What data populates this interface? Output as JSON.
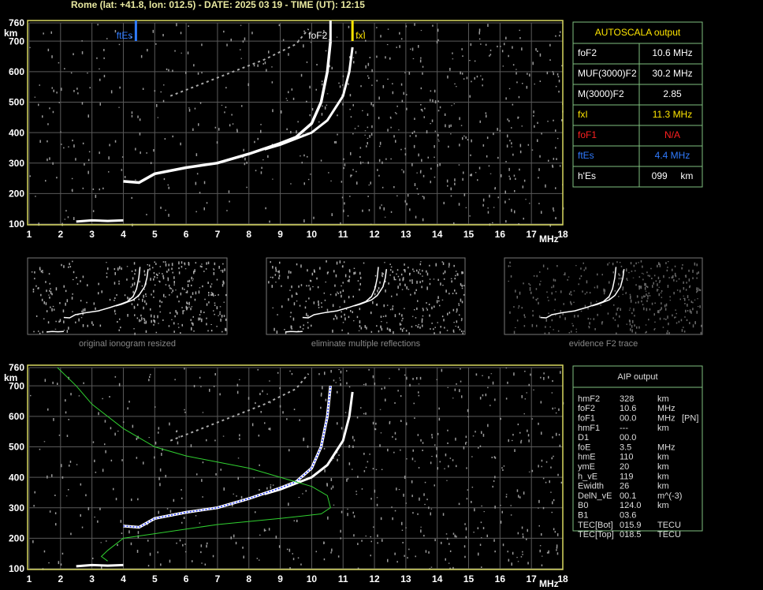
{
  "header": "Rome (lat: +41.8, lon: 012.5) - DATE: 2025 03 19 - TIME (UT): 12:15",
  "ionogram": {
    "x_unit": "MHz",
    "y_unit": "km",
    "xlim": [
      1,
      18
    ],
    "ylim": [
      100,
      760
    ],
    "xticks": [
      1,
      2,
      3,
      4,
      5,
      6,
      7,
      8,
      9,
      10,
      11,
      12,
      13,
      14,
      15,
      16,
      17,
      18
    ],
    "yticks": [
      100,
      200,
      300,
      400,
      500,
      600,
      700,
      760
    ],
    "markers": [
      {
        "label": "ftEs",
        "value": 4.4,
        "color": "#2f7bff"
      },
      {
        "label": "foF2",
        "value": 10.6,
        "color": "#ffffff"
      },
      {
        "label": "fxI",
        "value": 11.3,
        "color": "#ffe600"
      }
    ],
    "trace_o": {
      "f": [
        4.0,
        4.5,
        5.0,
        6.0,
        7.0,
        8.0,
        9.0,
        9.5,
        10.0,
        10.3,
        10.5,
        10.6
      ],
      "h": [
        240,
        236,
        265,
        285,
        300,
        330,
        365,
        385,
        430,
        500,
        600,
        700
      ]
    },
    "trace_x": {
      "f": [
        8.5,
        9.0,
        10.0,
        10.5,
        11.0,
        11.2,
        11.3
      ],
      "h": [
        345,
        360,
        400,
        440,
        520,
        600,
        680
      ]
    },
    "trace_es": {
      "f": [
        2.5,
        3.0,
        3.5,
        4.0
      ],
      "h": [
        108,
        112,
        110,
        112
      ]
    },
    "trace_multi": {
      "f": [
        5.5,
        6.5,
        7.5,
        8.5,
        9.5,
        9.9
      ],
      "h": [
        520,
        560,
        600,
        640,
        690,
        740
      ]
    },
    "profile": {
      "f": [
        1.9,
        2.5,
        3.0,
        4.0,
        5.0,
        6.0,
        7.0,
        8.0,
        9.0,
        10.0,
        10.5,
        10.6,
        10.3,
        9.0,
        7.0,
        5.0,
        4.0,
        3.5,
        3.3,
        3.5
      ],
      "h": [
        760,
        700,
        640,
        560,
        500,
        470,
        450,
        430,
        400,
        370,
        340,
        300,
        280,
        265,
        245,
        215,
        200,
        160,
        140,
        125
      ]
    }
  },
  "autoscala": {
    "title": "AUTOSCALA output",
    "rows": [
      {
        "name": "foF2",
        "value": "10.6 MHz",
        "color": "#ffffff"
      },
      {
        "name": "MUF(3000)F2",
        "value": "30.2 MHz",
        "color": "#ffffff"
      },
      {
        "name": "M(3000)F2",
        "value": "2.85",
        "color": "#ffffff"
      },
      {
        "name": "fxI",
        "value": "11.3 MHz",
        "color": "#ffe600"
      },
      {
        "name": "foF1",
        "value": "N/A",
        "color": "#ff2020"
      },
      {
        "name": "ftEs",
        "value": "4.4 MHz",
        "color": "#2f7bff"
      },
      {
        "name": "h'Es",
        "value": "099     km",
        "color": "#ffffff"
      }
    ]
  },
  "thumbnails": [
    "original ionogram resized",
    "eliminate multiple reflections",
    "evidence F2 trace"
  ],
  "aip": {
    "title": "AIP output",
    "rows": [
      [
        "hmF2",
        "328",
        "km",
        ""
      ],
      [
        "foF2",
        "10.6",
        "MHz",
        ""
      ],
      [
        "foF1",
        "00.0",
        "MHz",
        "[PN]"
      ],
      [
        "hmF1",
        "---",
        "km",
        ""
      ],
      [
        "D1",
        "00.0",
        "",
        ""
      ],
      [
        "foE",
        "3.5",
        "MHz",
        ""
      ],
      [
        "hmE",
        "110",
        "km",
        ""
      ],
      [
        "ymE",
        "20",
        "km",
        ""
      ],
      [
        "h_vE",
        "119",
        "km",
        ""
      ],
      [
        "Ewidth",
        "26",
        "km",
        ""
      ],
      [
        "DelN_vE",
        "00.1",
        "m^(-3)",
        ""
      ],
      [
        "B0",
        "124.0",
        "km",
        ""
      ],
      [
        "B1",
        "03.6",
        "",
        ""
      ],
      [
        "TEC[Bot]",
        "015.9",
        "TECU",
        ""
      ],
      [
        "TEC[Top]",
        "018.5",
        "TECU",
        ""
      ]
    ]
  }
}
